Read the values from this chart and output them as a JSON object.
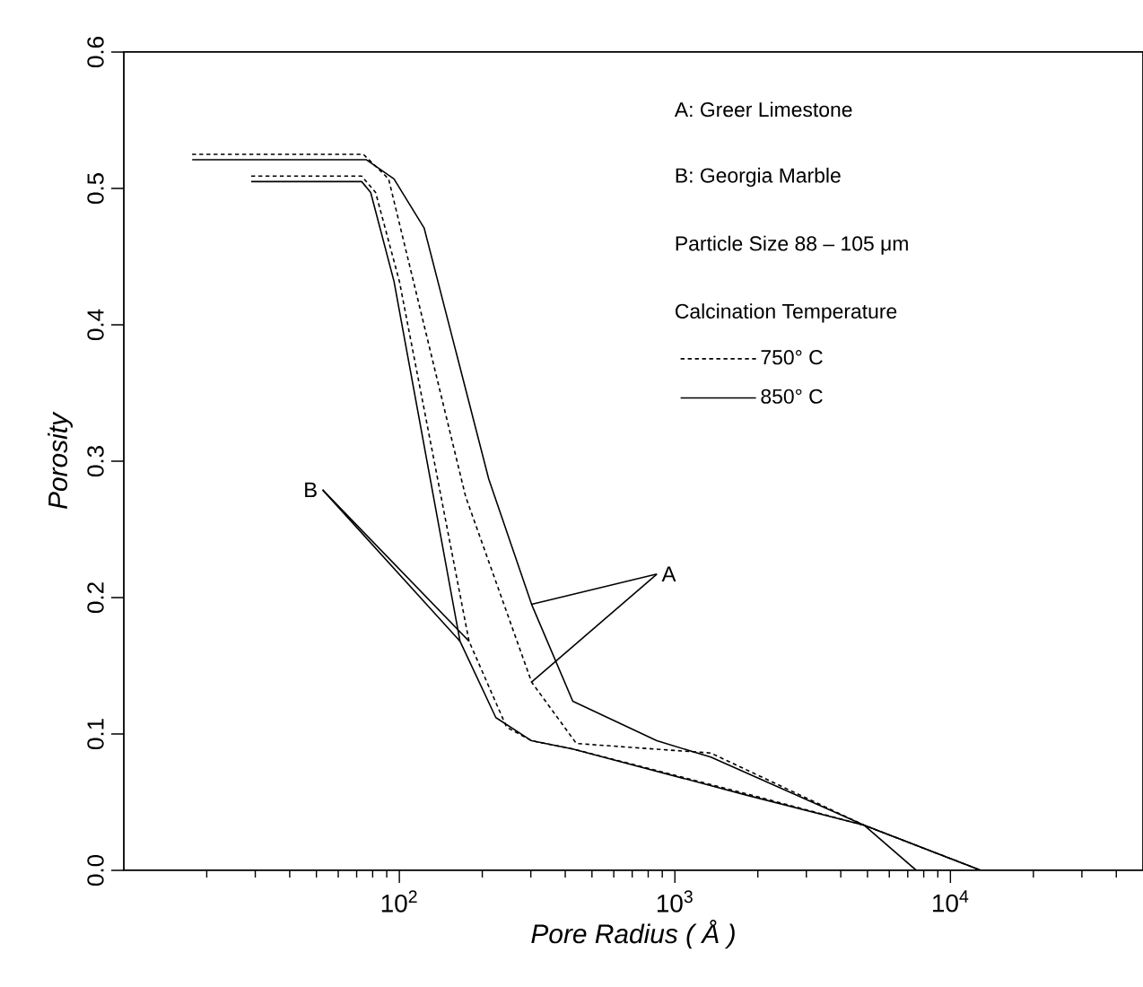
{
  "chart_data": {
    "type": "line",
    "xlabel": "Pore Radius ( Å )",
    "ylabel": "*Porosity*",
    "log": "x",
    "xlim": [
      10,
      50000
    ],
    "ylim": [
      0,
      0.6
    ],
    "xticks": [
      {
        "value": 100,
        "label": "10$^{2}$"
      },
      {
        "value": 1000,
        "label": "10$^{3}$"
      },
      {
        "value": 10000,
        "label": "10$^{4}$"
      }
    ],
    "yticks": [
      {
        "value": 0,
        "label": "0.0"
      },
      0.1,
      0.2,
      0.3,
      0.4,
      0.5,
      0.6
    ],
    "legend": "top right",
    "legend_title": "Calcination Temperature",
    "series": [
      {
        "name": "750° C",
        "color": "#000000",
        "line_style": "dashed",
        "x": [
          17.7,
          74,
          91.4,
          174,
          302,
          439,
          1350,
          4870,
          12900
        ],
        "values": [
          0.525,
          0.525,
          0.507,
          0.274,
          0.138,
          0.093,
          0.086,
          0.033,
          0
        ]
      },
      {
        "name": "850° C",
        "color": "#000000",
        "line_style": "solid",
        "x": [
          17.7,
          76,
          95.6,
          123,
          211,
          302,
          426,
          860,
          1350,
          4870,
          7520
        ],
        "values": [
          0.521,
          0.521,
          0.507,
          0.471,
          0.287,
          0.195,
          0.124,
          0.095,
          0.083,
          0.033,
          0
        ]
      },
      {
        "color": "#000000",
        "line_style": "dashed",
        "x": [
          29,
          73,
          82,
          100,
          179,
          245,
          302,
          426,
          1830,
          4870,
          12900
        ],
        "values": [
          0.509,
          0.509,
          0.497,
          0.432,
          0.168,
          0.105,
          0.095,
          0.089,
          0.056,
          0.033,
          0
        ]
      },
      {
        "color": "#000000",
        "line_style": "solid",
        "x": [
          29,
          73,
          78.7,
          95.6,
          166,
          224,
          302,
          426,
          1830,
          4870,
          12900
        ],
        "values": [
          0.505,
          0.505,
          0.497,
          0.432,
          0.168,
          0.112,
          0.095,
          0.089,
          0.055,
          0.033,
          0
        ]
      }
    ],
    "annotations": [
      {
        "text": "A",
        "x": 302,
        "y": 0.195
      },
      {
        "text": "B",
        "x": 166,
        "y": 0.168
      },
      "A: Greer Limestone",
      "B: Georgia Marble",
      "Particle Size 88 – 105 μm"
    ]
  }
}
